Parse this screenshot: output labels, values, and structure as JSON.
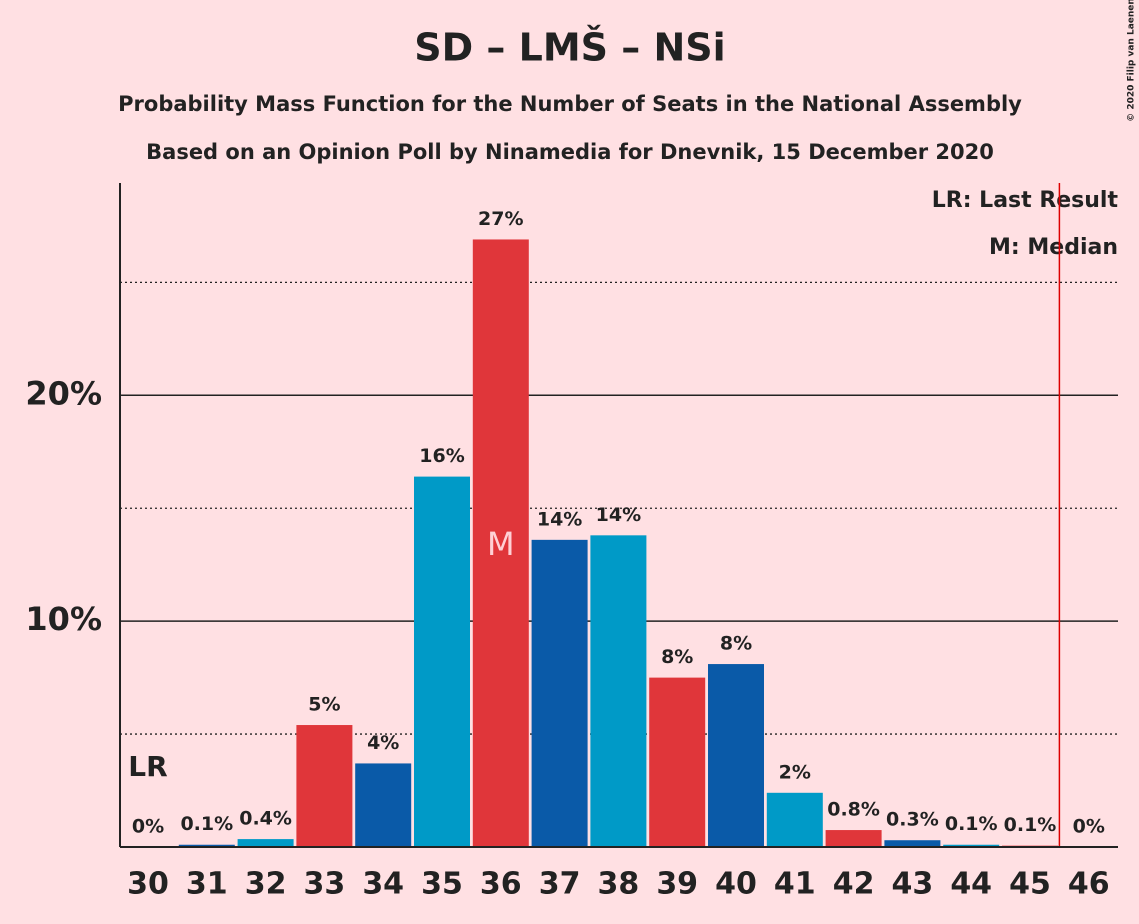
{
  "chart_data": {
    "type": "bar",
    "title": "SD – LMŠ – NSi",
    "subtitle": "Probability Mass Function for the Number of Seats in the National Assembly",
    "subtitle2": "Based on an Opinion Poll by Ninamedia for Dnevnik, 15 December 2020",
    "copyright": "© 2020 Filip van Laenen",
    "categories": [
      "30",
      "31",
      "32",
      "33",
      "34",
      "35",
      "36",
      "37",
      "38",
      "39",
      "40",
      "41",
      "42",
      "43",
      "44",
      "45",
      "46"
    ],
    "values": [
      0,
      0.1,
      0.35,
      5.4,
      3.7,
      16.4,
      26.9,
      13.6,
      13.8,
      7.5,
      8.1,
      2.4,
      0.75,
      0.3,
      0.1,
      0.06,
      0
    ],
    "value_labels": [
      "0%",
      "0.1%",
      "0.4%",
      "5%",
      "4%",
      "16%",
      "27%",
      "14%",
      "14%",
      "8%",
      "8%",
      "2%",
      "0.8%",
      "0.3%",
      "0.1%",
      "0.1%",
      "0%"
    ],
    "colors": [
      "#e0363a",
      "#0a5aa8",
      "#009ac7",
      "#e0363a",
      "#0a5aa8",
      "#009ac7",
      "#e0363a",
      "#0a5aa8",
      "#009ac7",
      "#e0363a",
      "#0a5aa8",
      "#009ac7",
      "#e0363a",
      "#0a5aa8",
      "#009ac7",
      "#e0363a",
      "#0a5aa8"
    ],
    "ylim": [
      0,
      29.4
    ],
    "yticks": [
      {
        "value": 10,
        "label": "10%"
      },
      {
        "value": 20,
        "label": "20%"
      }
    ],
    "minor_grid": [
      5,
      15,
      25
    ],
    "grid": true,
    "last_result": {
      "category": 0,
      "label": "LR"
    },
    "median": {
      "category": 6,
      "label": "M"
    },
    "majority_line": 45.5,
    "legend": [
      "LR: Last Result",
      "M: Median"
    ]
  }
}
